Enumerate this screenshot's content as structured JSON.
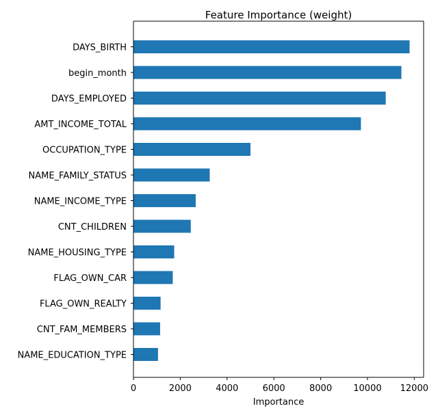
{
  "chart_data": {
    "type": "bar",
    "orientation": "horizontal",
    "title": "Feature Importance (weight)",
    "xlabel": "Importance",
    "ylabel": "",
    "categories": [
      "DAYS_BIRTH",
      "begin_month",
      "DAYS_EMPLOYED",
      "AMT_INCOME_TOTAL",
      "OCCUPATION_TYPE",
      "NAME_FAMILY_STATUS",
      "NAME_INCOME_TYPE",
      "CNT_CHILDREN",
      "NAME_HOUSING_TYPE",
      "FLAG_OWN_CAR",
      "FLAG_OWN_REALTY",
      "CNT_FAM_MEMBERS",
      "NAME_EDUCATION_TYPE"
    ],
    "values": [
      11800,
      11450,
      10780,
      9720,
      5000,
      3260,
      2660,
      2450,
      1740,
      1680,
      1160,
      1140,
      1050
    ],
    "xlim": [
      0,
      12400
    ],
    "xticks": [
      0,
      2000,
      4000,
      6000,
      8000,
      10000,
      12000
    ],
    "xtick_labels": [
      "0",
      "2000",
      "4000",
      "6000",
      "8000",
      "10000",
      "12000"
    ],
    "grid": false,
    "bar_color": "#1f77b4"
  }
}
